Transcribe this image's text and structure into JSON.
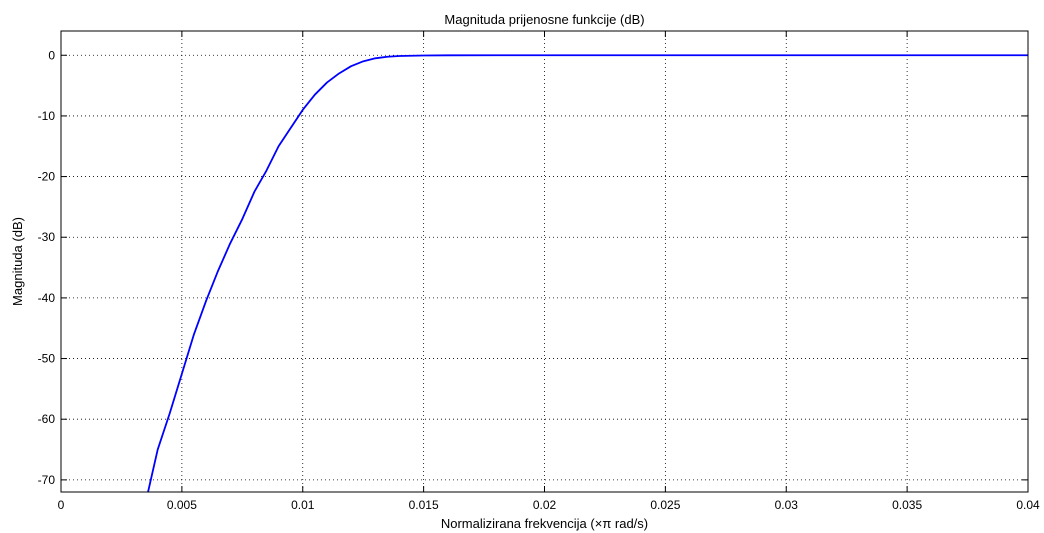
{
  "chart_data": {
    "type": "line",
    "title": "Magnituda prijenosne funkcije (dB)",
    "xlabel": "Normalizirana frekvencija (×π rad/s)",
    "ylabel": "Magnituda (dB)",
    "xlim": [
      0,
      0.04
    ],
    "ylim": [
      -72,
      4
    ],
    "xticks": [
      0,
      0.005,
      0.01,
      0.015,
      0.02,
      0.025,
      0.03,
      0.035,
      0.04
    ],
    "xtick_labels": [
      "0",
      "0.005",
      "0.01",
      "0.015",
      "0.02",
      "0.025",
      "0.03",
      "0.035",
      "0.04"
    ],
    "yticks": [
      0,
      -10,
      -20,
      -30,
      -40,
      -50,
      -60,
      -70
    ],
    "ytick_labels": [
      "0",
      "-10",
      "-20",
      "-30",
      "-40",
      "-50",
      "-60",
      "-70"
    ],
    "grid": true,
    "line_color": "#0000ff",
    "series": [
      {
        "x": [
          0.0036,
          0.004,
          0.0045,
          0.005,
          0.0055,
          0.006,
          0.0065,
          0.007,
          0.0075,
          0.008,
          0.0085,
          0.009,
          0.0095,
          0.01,
          0.0105,
          0.011,
          0.0115,
          0.012,
          0.0125,
          0.013,
          0.0135,
          0.014,
          0.015,
          0.016,
          0.018,
          0.02,
          0.025,
          0.03,
          0.035,
          0.04
        ],
        "y": [
          -72,
          -65,
          -59,
          -52.5,
          -46,
          -40.5,
          -35.5,
          -31,
          -27,
          -22.5,
          -19,
          -15,
          -12,
          -9,
          -6.5,
          -4.5,
          -3,
          -1.8,
          -1,
          -0.5,
          -0.25,
          -0.12,
          -0.04,
          -0.01,
          0,
          0,
          0,
          0,
          0,
          0
        ]
      }
    ]
  }
}
